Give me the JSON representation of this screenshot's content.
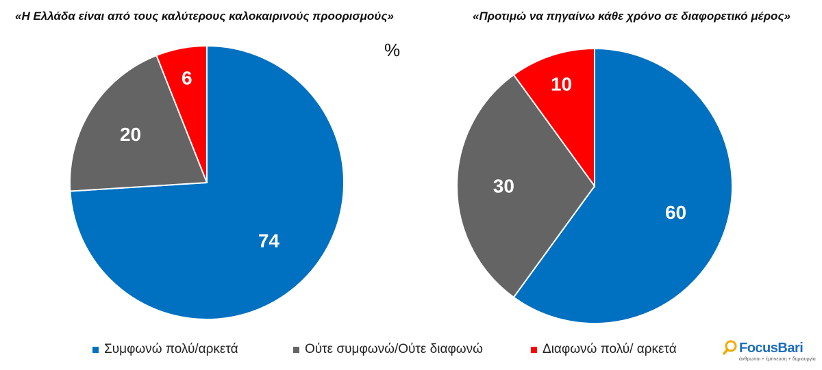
{
  "unit_label": "%",
  "legend": [
    {
      "label": "Συμφωνώ πολύ/αρκετά",
      "color": "#0070C0"
    },
    {
      "label": "Ούτε συμφωνώ/Ούτε διαφωνώ",
      "color": "#646464"
    },
    {
      "label": "Διαφωνώ πολύ/ αρκετά",
      "color": "#FF0000"
    }
  ],
  "logo": {
    "name": "FocusBari",
    "tagline": "άνθρωποι + έμπνευση + δημιουργία"
  },
  "chart_data": [
    {
      "type": "pie",
      "title": "«Η Ελλάδα είναι από τους καλύτερους καλοκαιρινούς προορισμούς»",
      "categories": [
        "Συμφωνώ πολύ/αρκετά",
        "Ούτε συμφωνώ/Ούτε διαφωνώ",
        "Διαφωνώ πολύ/ αρκετά"
      ],
      "values": [
        74,
        20,
        6
      ],
      "colors": [
        "#0070C0",
        "#646464",
        "#FF0000"
      ]
    },
    {
      "type": "pie",
      "title": "«Προτιμώ να πηγαίνω κάθε χρόνο σε διαφορετικό μέρος»",
      "categories": [
        "Συμφωνώ πολύ/αρκετά",
        "Ούτε συμφωνώ/Ούτε διαφωνώ",
        "Διαφωνώ πολύ/ αρκετά"
      ],
      "values": [
        60,
        30,
        10
      ],
      "colors": [
        "#0070C0",
        "#646464",
        "#FF0000"
      ]
    }
  ]
}
